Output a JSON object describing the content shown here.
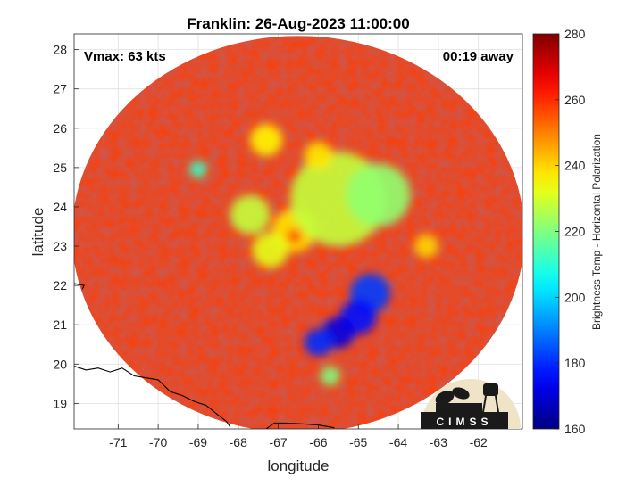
{
  "chart_data": {
    "type": "heatmap",
    "title": "Franklin: 26-Aug-2023 11:00:00",
    "annotations": {
      "vmax": "Vmax: 63 kts",
      "time_offset": "00:19 away"
    },
    "xlabel": "longitude",
    "ylabel": "latitude",
    "xlim": [
      -72.1,
      -60.9
    ],
    "ylim": [
      18.35,
      28.4
    ],
    "x_ticks": [
      -71,
      -70,
      -69,
      -68,
      -67,
      -66,
      -65,
      -64,
      -63,
      -62
    ],
    "y_ticks": [
      19,
      20,
      21,
      22,
      23,
      24,
      25,
      26,
      27,
      28
    ],
    "grid": true,
    "colorbar": {
      "label": "Brightness Temp - Horizontal Polarization",
      "min": 160,
      "max": 280,
      "ticks": [
        160,
        180,
        200,
        220,
        240,
        260,
        280
      ],
      "colormap": "jet"
    },
    "swath": {
      "center_lon": -66.5,
      "center_lat": 23.3,
      "radius_deg_lon": 5.65,
      "radius_deg_lat": 5.05,
      "background_value": 258
    },
    "storm_center": {
      "lon": -66.6,
      "lat": 23.25
    },
    "features": [
      {
        "name": "eyewall",
        "lon": -66.6,
        "lat": 23.4,
        "radius": 0.55,
        "value": 238
      },
      {
        "name": "eye",
        "lon": -66.6,
        "lat": 23.25,
        "radius": 0.2,
        "value": 255
      },
      {
        "name": "north-band",
        "lon": -65.5,
        "lat": 24.2,
        "radius": 1.2,
        "value": 228
      },
      {
        "name": "northeast-band",
        "lon": -64.5,
        "lat": 24.3,
        "radius": 0.8,
        "value": 222
      },
      {
        "name": "inner-band-west",
        "lon": -67.7,
        "lat": 23.8,
        "radius": 0.5,
        "value": 228
      },
      {
        "name": "inner-band-south",
        "lon": -67.2,
        "lat": 22.9,
        "radius": 0.45,
        "value": 232
      },
      {
        "name": "convection-east-1",
        "lon": -64.7,
        "lat": 21.8,
        "radius": 0.5,
        "value": 182
      },
      {
        "name": "convection-east-2",
        "lon": -65.0,
        "lat": 21.2,
        "radius": 0.45,
        "value": 176
      },
      {
        "name": "convection-southeast",
        "lon": -65.5,
        "lat": 20.8,
        "radius": 0.4,
        "value": 172
      },
      {
        "name": "convection-south",
        "lon": -66.0,
        "lat": 20.55,
        "radius": 0.35,
        "value": 180
      },
      {
        "name": "convection-tail-south",
        "lon": -65.7,
        "lat": 19.7,
        "radius": 0.25,
        "value": 220
      },
      {
        "name": "outer-cell-west",
        "lon": -69.0,
        "lat": 24.95,
        "radius": 0.22,
        "value": 212
      },
      {
        "name": "outer-band-northwest",
        "lon": -67.3,
        "lat": 25.7,
        "radius": 0.4,
        "value": 236
      },
      {
        "name": "outer-band-north",
        "lon": -66.0,
        "lat": 25.3,
        "radius": 0.35,
        "value": 238
      },
      {
        "name": "outer-cell-east",
        "lon": -63.3,
        "lat": 23.0,
        "radius": 0.3,
        "value": 240
      }
    ],
    "coastlines": [
      {
        "name": "hispaniola-north-coast",
        "lonlat": [
          [
            -72.1,
            19.95
          ],
          [
            -71.8,
            19.85
          ],
          [
            -71.5,
            19.9
          ],
          [
            -71.2,
            19.8
          ],
          [
            -70.9,
            19.9
          ],
          [
            -70.6,
            19.7
          ],
          [
            -70.3,
            19.65
          ],
          [
            -70.0,
            19.6
          ],
          [
            -69.7,
            19.3
          ],
          [
            -69.4,
            19.2
          ],
          [
            -69.1,
            19.05
          ],
          [
            -68.8,
            18.95
          ],
          [
            -68.5,
            18.7
          ],
          [
            -68.3,
            18.55
          ],
          [
            -68.2,
            18.4
          ]
        ]
      },
      {
        "name": "puerto-rico-north-coast",
        "lonlat": [
          [
            -67.3,
            18.35
          ],
          [
            -67.1,
            18.5
          ],
          [
            -66.8,
            18.5
          ],
          [
            -66.4,
            18.48
          ],
          [
            -66.0,
            18.45
          ],
          [
            -65.6,
            18.38
          ]
        ]
      },
      {
        "name": "bahamas-fragment",
        "lonlat": [
          [
            -72.1,
            22.05
          ],
          [
            -71.85,
            22.0
          ],
          [
            -71.9,
            21.9
          ]
        ]
      }
    ],
    "logo_text": "CIMSS"
  }
}
